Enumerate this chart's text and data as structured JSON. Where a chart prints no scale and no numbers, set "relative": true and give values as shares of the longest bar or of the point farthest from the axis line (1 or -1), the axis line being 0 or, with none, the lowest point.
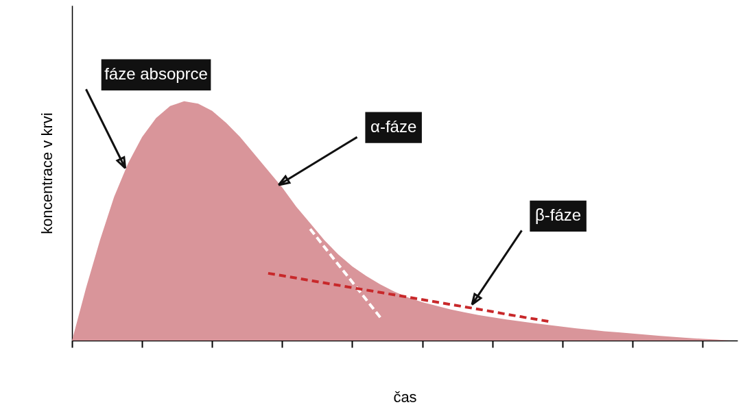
{
  "chart_data": {
    "type": "area",
    "relative": true,
    "xlabel": "čas",
    "ylabel": "koncentrace v krvi",
    "grid": false,
    "categories": [
      null,
      null,
      null,
      null,
      null,
      null,
      null,
      null,
      null,
      null,
      null,
      null,
      null,
      null,
      null,
      null,
      null,
      null,
      null,
      null,
      null,
      null,
      null,
      null,
      null,
      null,
      null,
      null,
      null,
      null,
      null,
      null,
      null,
      null,
      null,
      null,
      null,
      null,
      null,
      null,
      null,
      null,
      null,
      null,
      null,
      null,
      null,
      null
    ],
    "series": [
      {
        "color": "#d9959a",
        "values": [
          0,
          0.22,
          0.42,
          0.6,
          0.74,
          0.85,
          0.93,
          0.98,
          1.0,
          0.99,
          0.96,
          0.91,
          0.85,
          0.78,
          0.71,
          0.64,
          0.56,
          0.49,
          0.42,
          0.36,
          0.31,
          0.27,
          0.235,
          0.205,
          0.18,
          0.16,
          0.145,
          0.13,
          0.118,
          0.107,
          0.097,
          0.088,
          0.08,
          0.072,
          0.065,
          0.058,
          0.051,
          0.045,
          0.039,
          0.034,
          0.029,
          0.024,
          0.019,
          0.015,
          0.011,
          0.007,
          0.004,
          0
        ]
      },
      {
        "type": "line",
        "color": "#ffffff",
        "line_style": "dashed",
        "values": [
          null,
          null,
          null,
          null,
          null,
          null,
          null,
          null,
          null,
          null,
          null,
          null,
          null,
          null,
          null,
          null,
          null,
          0.466,
          0.392,
          0.318,
          0.245,
          0.171,
          0.097,
          null,
          null,
          null,
          null,
          null,
          null,
          null,
          null,
          null,
          null,
          null,
          null,
          null,
          null,
          null,
          null,
          null,
          null,
          null,
          null,
          null,
          null,
          null,
          null,
          null
        ]
      },
      {
        "type": "line",
        "color": "#c8282a",
        "line_style": "dashed",
        "values": [
          null,
          null,
          null,
          null,
          null,
          null,
          null,
          null,
          null,
          null,
          null,
          null,
          null,
          null,
          0.281,
          0.271,
          0.261,
          0.251,
          0.241,
          0.231,
          0.221,
          0.211,
          0.201,
          0.191,
          0.181,
          0.171,
          0.161,
          0.151,
          0.141,
          0.131,
          0.121,
          0.11,
          0.1,
          0.09,
          0.08,
          null,
          null,
          null,
          null,
          null,
          null,
          null,
          null,
          null,
          null,
          null,
          null,
          null
        ]
      }
    ],
    "annotations": [
      "fáze absoprce",
      "α-fáze",
      "β-fáze"
    ]
  }
}
